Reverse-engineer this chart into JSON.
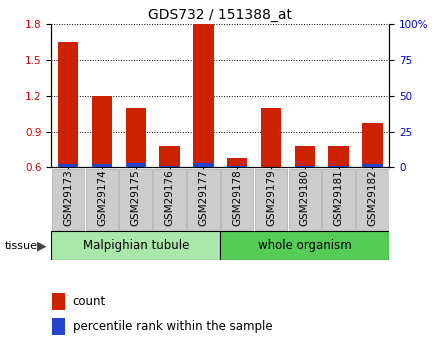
{
  "title": "GDS732 / 151388_at",
  "categories": [
    "GSM29173",
    "GSM29174",
    "GSM29175",
    "GSM29176",
    "GSM29177",
    "GSM29178",
    "GSM29179",
    "GSM29180",
    "GSM29181",
    "GSM29182"
  ],
  "count_values": [
    1.65,
    1.2,
    1.1,
    0.78,
    1.8,
    0.68,
    1.1,
    0.78,
    0.78,
    0.97
  ],
  "percentile_values": [
    2,
    2,
    3,
    1,
    3,
    1,
    0,
    1,
    1,
    2
  ],
  "ylim_left": [
    0.6,
    1.8
  ],
  "ylim_right": [
    0,
    100
  ],
  "yticks_left": [
    0.6,
    0.9,
    1.2,
    1.5,
    1.8
  ],
  "yticks_right": [
    0,
    25,
    50,
    75,
    100
  ],
  "bar_color_count": "#cc2200",
  "bar_color_pct": "#2244cc",
  "bar_width": 0.6,
  "tissue_groups": [
    {
      "label": "Malpighian tubule",
      "start": 0,
      "end": 5,
      "color": "#aae8aa"
    },
    {
      "label": "whole organism",
      "start": 5,
      "end": 10,
      "color": "#55cc55"
    }
  ],
  "xticklabel_bg": "#cccccc",
  "tissue_label": "tissue",
  "legend_count": "count",
  "legend_pct": "percentile rank within the sample",
  "tick_label_color_left": "#cc0000",
  "tick_label_color_right": "#0000cc",
  "label_fontsize": 7.5,
  "title_fontsize": 10
}
